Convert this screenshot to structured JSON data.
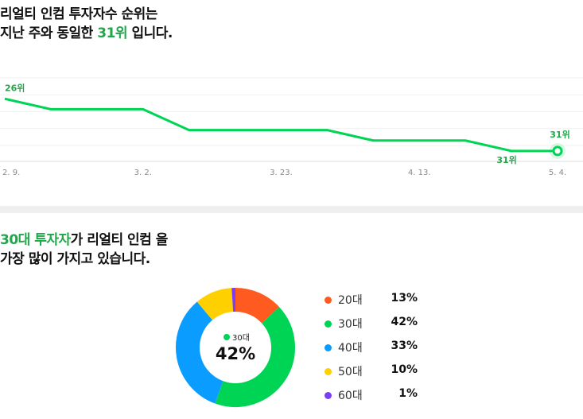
{
  "rank_heading": {
    "line1": "리얼티 인컴 투자자수 순위는",
    "line2_pre": "지난 주와 동일한 ",
    "line2_hl": "31위",
    "line2_post": " 입니다."
  },
  "age_heading": {
    "hl": "30대 투자자",
    "line1_post": "가 리얼티 인컴 을",
    "line2": "가장 많이 가지고 있습니다."
  },
  "chart_data": [
    {
      "type": "line",
      "title": "",
      "xlabel": "",
      "ylabel": "",
      "y_inverted": true,
      "ylim": [
        24,
        32
      ],
      "x_tick_labels": [
        "2. 9.",
        "3. 2.",
        "3. 23.",
        "4. 13.",
        "5. 4."
      ],
      "x_tick_index": [
        0,
        3,
        6,
        9,
        12
      ],
      "series": [
        {
          "values": [
            26,
            27,
            27,
            27,
            29,
            29,
            29,
            29,
            30,
            30,
            30,
            31,
            31
          ]
        }
      ],
      "point_labels": [
        {
          "index": 0,
          "text": "26위"
        },
        {
          "index": 11,
          "text": "31위"
        },
        {
          "index": 12,
          "text": "31위"
        }
      ],
      "colors": {
        "line": "#00d455",
        "label": "#1ea84a",
        "grid": "#f1f1f1",
        "axis": "#dcdcdc",
        "tick": "#888888"
      }
    },
    {
      "type": "pie",
      "title": "",
      "categories": [
        "20대",
        "30대",
        "40대",
        "50대",
        "60대"
      ],
      "values": [
        13,
        42,
        33,
        10,
        1
      ],
      "value_labels": [
        "13%",
        "42%",
        "33%",
        "10%",
        "1%"
      ],
      "colors": [
        "#ff5a1f",
        "#00d455",
        "#0a9dff",
        "#ffd000",
        "#7b3ff2"
      ],
      "center": {
        "label": "30대",
        "value": "42%"
      },
      "legend": "right"
    }
  ]
}
